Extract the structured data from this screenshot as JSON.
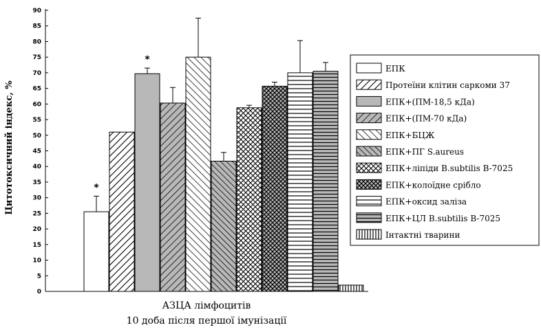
{
  "chart_data": {
    "type": "bar",
    "ylabel": "Цитотоксичний індекс, %",
    "xlabel_line1": "АЗЦА лімфоцитів",
    "xlabel_line2": "10 доба після першої імунізації",
    "ylim": [
      0,
      90
    ],
    "yticks": [
      0,
      5,
      10,
      15,
      20,
      25,
      30,
      35,
      40,
      45,
      50,
      55,
      60,
      65,
      70,
      75,
      80,
      85,
      90
    ],
    "grid": false,
    "legend_position": "right",
    "series": [
      {
        "name": "ЕПК",
        "value": 25.5,
        "error": 5,
        "star": true,
        "pattern": "blank"
      },
      {
        "name": "Протеїни клітин саркоми 37",
        "value": 51,
        "error": 0,
        "star": false,
        "pattern": "diag-dense"
      },
      {
        "name": "ЕПК+(ПМ-18,5 кДа)",
        "value": 69.7,
        "error": 1.8,
        "star": true,
        "pattern": "gray"
      },
      {
        "name": "ЕПК+(ПМ-70 кДа)",
        "value": 60.3,
        "error": 5,
        "star": false,
        "pattern": "diag-gray"
      },
      {
        "name": "ЕПК+БЦЖ",
        "value": 75,
        "error": 12.5,
        "star": false,
        "pattern": "backdiag"
      },
      {
        "name": "ЕПК+ПГ S.aureus",
        "value": 41.7,
        "error": 2.8,
        "star": false,
        "pattern": "backdiag-gray"
      },
      {
        "name": "ЕПК+ліпіди B.subtilis B-7025",
        "value": 58.8,
        "error": 0.8,
        "star": false,
        "pattern": "crosshatch"
      },
      {
        "name": "ЕПК+колоїдне срібло",
        "value": 65.7,
        "error": 1.3,
        "star": false,
        "pattern": "crosshatch-gray"
      },
      {
        "name": "ЕПК+оксид заліза",
        "value": 70,
        "error": 10.3,
        "star": false,
        "pattern": "hlines"
      },
      {
        "name": "ЕПК+ЦЛ B.subtilis B-7025",
        "value": 70.5,
        "error": 2.8,
        "star": false,
        "pattern": "hlines-gray"
      },
      {
        "name": "Інтактні тварини",
        "value": 2,
        "error": 0,
        "star": false,
        "pattern": "vlines"
      }
    ],
    "colors": {
      "axis": "#000000",
      "fill_gray": "#b8b8b8",
      "fill_white": "#ffffff"
    }
  },
  "star_symbol": "*"
}
